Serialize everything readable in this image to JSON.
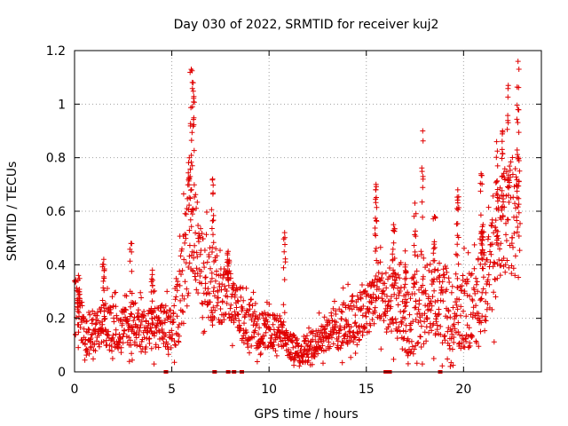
{
  "chart_data": {
    "type": "scatter",
    "title": "Day 030 of 2022, SRMTID for receiver kuj2",
    "xlabel": "GPS time / hours",
    "ylabel": "SRMTID / TECUs",
    "xlim": [
      0,
      24
    ],
    "ylim": [
      0,
      1.2
    ],
    "xticks": [
      0,
      5,
      10,
      15,
      20
    ],
    "xtick_labels": [
      "0",
      "5",
      "10",
      "15",
      "20"
    ],
    "yticks": [
      0,
      0.2,
      0.4,
      0.6,
      0.8,
      1.0,
      1.2
    ],
    "ytick_labels": [
      "0",
      "0.2",
      "0.4",
      "0.6",
      "0.8",
      "1",
      "1.2"
    ],
    "grid": true,
    "marker": "+",
    "color": "#e00000",
    "series": [
      {
        "name": "SRMTID",
        "profile": [
          {
            "x": 0.0,
            "y": 0.28
          },
          {
            "x": 0.3,
            "y": 0.2
          },
          {
            "x": 0.6,
            "y": 0.14
          },
          {
            "x": 1.0,
            "y": 0.15
          },
          {
            "x": 1.5,
            "y": 0.18
          },
          {
            "x": 2.0,
            "y": 0.17
          },
          {
            "x": 2.5,
            "y": 0.16
          },
          {
            "x": 3.0,
            "y": 0.18
          },
          {
            "x": 3.5,
            "y": 0.15
          },
          {
            "x": 4.0,
            "y": 0.16
          },
          {
            "x": 4.5,
            "y": 0.17
          },
          {
            "x": 5.0,
            "y": 0.16
          },
          {
            "x": 5.5,
            "y": 0.3
          },
          {
            "x": 5.9,
            "y": 0.55
          },
          {
            "x": 6.2,
            "y": 0.5
          },
          {
            "x": 6.6,
            "y": 0.35
          },
          {
            "x": 7.0,
            "y": 0.33
          },
          {
            "x": 7.5,
            "y": 0.3
          },
          {
            "x": 8.0,
            "y": 0.28
          },
          {
            "x": 8.5,
            "y": 0.2
          },
          {
            "x": 9.0,
            "y": 0.18
          },
          {
            "x": 9.5,
            "y": 0.16
          },
          {
            "x": 10.0,
            "y": 0.15
          },
          {
            "x": 10.5,
            "y": 0.16
          },
          {
            "x": 11.0,
            "y": 0.1
          },
          {
            "x": 11.5,
            "y": 0.08
          },
          {
            "x": 12.0,
            "y": 0.09
          },
          {
            "x": 12.5,
            "y": 0.12
          },
          {
            "x": 13.0,
            "y": 0.15
          },
          {
            "x": 13.5,
            "y": 0.16
          },
          {
            "x": 14.0,
            "y": 0.18
          },
          {
            "x": 14.5,
            "y": 0.2
          },
          {
            "x": 15.0,
            "y": 0.24
          },
          {
            "x": 15.5,
            "y": 0.3
          },
          {
            "x": 16.0,
            "y": 0.28
          },
          {
            "x": 16.5,
            "y": 0.24
          },
          {
            "x": 17.0,
            "y": 0.2
          },
          {
            "x": 17.5,
            "y": 0.22
          },
          {
            "x": 18.0,
            "y": 0.24
          },
          {
            "x": 18.5,
            "y": 0.26
          },
          {
            "x": 19.0,
            "y": 0.25
          },
          {
            "x": 19.5,
            "y": 0.22
          },
          {
            "x": 20.0,
            "y": 0.22
          },
          {
            "x": 20.5,
            "y": 0.25
          },
          {
            "x": 21.0,
            "y": 0.3
          },
          {
            "x": 21.5,
            "y": 0.4
          },
          {
            "x": 22.0,
            "y": 0.55
          },
          {
            "x": 22.5,
            "y": 0.6
          },
          {
            "x": 22.9,
            "y": 0.55
          }
        ],
        "spread": [
          {
            "x": 0.0,
            "y": 0.1
          },
          {
            "x": 5.0,
            "y": 0.1
          },
          {
            "x": 5.8,
            "y": 0.3
          },
          {
            "x": 6.5,
            "y": 0.2
          },
          {
            "x": 8.0,
            "y": 0.12
          },
          {
            "x": 11.0,
            "y": 0.06
          },
          {
            "x": 12.5,
            "y": 0.07
          },
          {
            "x": 15.0,
            "y": 0.14
          },
          {
            "x": 18.0,
            "y": 0.2
          },
          {
            "x": 20.0,
            "y": 0.18
          },
          {
            "x": 21.5,
            "y": 0.22
          },
          {
            "x": 22.9,
            "y": 0.28
          }
        ],
        "spikes": [
          {
            "x": 0.2,
            "y": 0.36
          },
          {
            "x": 1.5,
            "y": 0.42
          },
          {
            "x": 2.9,
            "y": 0.48
          },
          {
            "x": 4.0,
            "y": 0.38
          },
          {
            "x": 5.9,
            "y": 0.8
          },
          {
            "x": 6.0,
            "y": 1.13
          },
          {
            "x": 6.1,
            "y": 1.08
          },
          {
            "x": 7.1,
            "y": 0.72
          },
          {
            "x": 7.9,
            "y": 0.45
          },
          {
            "x": 10.8,
            "y": 0.52
          },
          {
            "x": 15.5,
            "y": 0.7
          },
          {
            "x": 16.4,
            "y": 0.55
          },
          {
            "x": 17.5,
            "y": 0.63
          },
          {
            "x": 17.9,
            "y": 0.9
          },
          {
            "x": 18.5,
            "y": 0.58
          },
          {
            "x": 19.7,
            "y": 0.68
          },
          {
            "x": 20.9,
            "y": 0.74
          },
          {
            "x": 21.7,
            "y": 0.86
          },
          {
            "x": 22.0,
            "y": 0.9
          },
          {
            "x": 22.3,
            "y": 1.07
          },
          {
            "x": 22.8,
            "y": 1.16
          },
          {
            "x": 22.8,
            "y": 0.98
          },
          {
            "x": 17.0,
            "y": 0.4
          },
          {
            "x": 21.0,
            "y": 0.55
          }
        ]
      }
    ],
    "zero_markers_x": [
      4.7,
      7.2,
      7.9,
      8.2,
      8.6,
      16.0,
      16.2,
      18.8
    ]
  }
}
